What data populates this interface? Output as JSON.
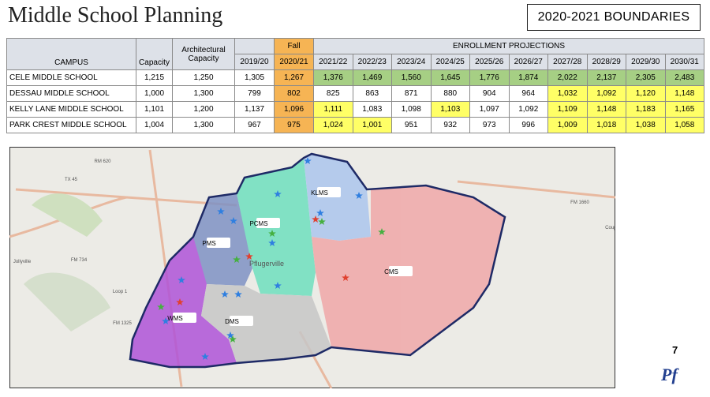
{
  "header": {
    "title": "Middle School Planning",
    "boundaries": "2020-2021 BOUNDARIES"
  },
  "table": {
    "fall_label": "Fall",
    "projections_label": "ENROLLMENT PROJECTIONS",
    "columns": [
      "CAMPUS",
      "Capacity",
      "Architectural Capacity",
      "2019/20",
      "2020/21",
      "2021/22",
      "2022/23",
      "2023/24",
      "2024/25",
      "2025/26",
      "2026/27",
      "2027/28",
      "2028/29",
      "2029/30",
      "2030/31"
    ],
    "rows": [
      [
        "CELE MIDDLE SCHOOL",
        "1,215",
        "1,250",
        "1,305",
        "1,267",
        "1,376",
        "1,469",
        "1,560",
        "1,645",
        "1,776",
        "1,874",
        "2,022",
        "2,137",
        "2,305",
        "2,483"
      ],
      [
        "DESSAU MIDDLE SCHOOL",
        "1,000",
        "1,300",
        "799",
        "802",
        "825",
        "863",
        "871",
        "880",
        "904",
        "964",
        "1,032",
        "1,092",
        "1,120",
        "1,148"
      ],
      [
        "KELLY LANE MIDDLE SCHOOL",
        "1,101",
        "1,200",
        "1,137",
        "1,096",
        "1,111",
        "1,083",
        "1,098",
        "1,103",
        "1,097",
        "1,092",
        "1,109",
        "1,148",
        "1,183",
        "1,165"
      ],
      [
        "PARK CREST MIDDLE SCHOOL",
        "1,004",
        "1,300",
        "967",
        "975",
        "1,024",
        "1,001",
        "951",
        "932",
        "973",
        "996",
        "1,009",
        "1,018",
        "1,038",
        "1,058"
      ]
    ]
  },
  "map": {
    "zones": [
      "PMS",
      "PCMS",
      "KLMS",
      "CMS",
      "WMS",
      "DMS"
    ],
    "places": [
      "Pflugerville",
      "RM 620",
      "TX 45",
      "FM 734",
      "Jollyville",
      "Loop 1",
      "FM 1325",
      "FM 1660",
      "Coupland"
    ]
  },
  "footer": {
    "page": "7",
    "logo": "Pf"
  }
}
